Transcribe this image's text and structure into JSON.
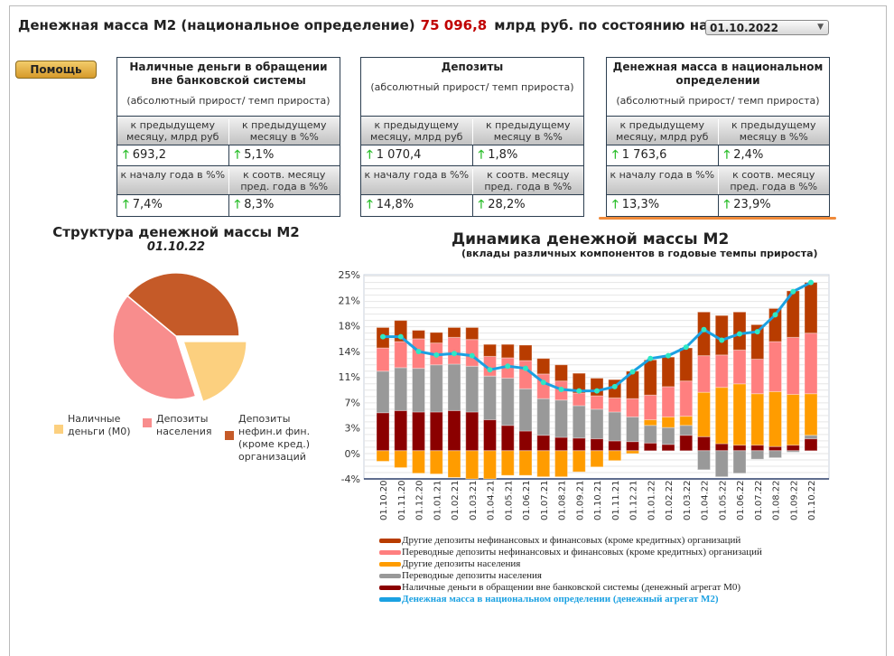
{
  "header": {
    "title": "Денежная масса М2 (национальное определение)",
    "value": "75 096,8",
    "unit": "млрд руб. по состоянию на",
    "date": "01.10.2022"
  },
  "help_label": "Помощь",
  "tables": [
    {
      "title": "Наличные деньги в обращении вне банковской системы",
      "subtitle": "(абсолютный прирост/ темп прироста)",
      "h1": "к предыдущему месяцу, млрд руб",
      "h2": "к предыдущему месяцу в %%",
      "v1": "693,2",
      "v2": "5,1%",
      "h3": "к началу года в %%",
      "h4": "к соотв. месяцу пред. года в %%",
      "v3": "7,4%",
      "v4": "8,3%"
    },
    {
      "title": "Депозиты",
      "subtitle": "(абсолютный прирост/ темп прироста)",
      "h1": "к предыдущему месяцу, млрд руб",
      "h2": "к предыдущему месяцу в %%",
      "v1": "1 070,4",
      "v2": "1,8%",
      "h3": "к началу года в %%",
      "h4": "к соотв. месяцу пред. года в %%",
      "v3": "14,8%",
      "v4": "28,2%"
    },
    {
      "title": "Денежная масса в национальном определении",
      "subtitle": "(абсолютный прирост/ темп прироста)",
      "h1": "к предыдущему месяцу, млрд руб",
      "h2": "к предыдущему месяцу в %%",
      "v1": "1 763,6",
      "v2": "2,4%",
      "h3": "к началу года в %%",
      "h4": "к соотв. месяцу пред. года в %%",
      "v3": "13,3%",
      "v4": "23,9%"
    }
  ],
  "chart_data": [
    {
      "type": "pie",
      "title": "Структура денежной массы М2",
      "subtitle": "01.10.22",
      "slices": [
        {
          "name": "Наличные деньги (М0)",
          "value": 20,
          "color": "#fcd07f"
        },
        {
          "name": "Депозиты населения",
          "value": 41,
          "color": "#f88d8d"
        },
        {
          "name": "Депозиты нефин.и фин. (кроме кред.) организаций",
          "value": 39,
          "color": "#c55a28"
        }
      ]
    },
    {
      "type": "bar",
      "stacked": true,
      "title": "Динамика денежной массы М2",
      "subtitle": "(вклады различных компонентов в годовые темпы прироста)",
      "ylim": [
        -4,
        25
      ],
      "yticks": [
        "25%",
        "21%",
        "18%",
        "14%",
        "11%",
        "7%",
        "3%",
        "0%",
        "-4%"
      ],
      "grid": true,
      "legend": "bottom",
      "categories": [
        "01.10.20",
        "01.11.20",
        "01.12.20",
        "01.01.21",
        "01.02.21",
        "01.03.21",
        "01.04.21",
        "01.05.21",
        "01.06.21",
        "01.07.21",
        "01.08.21",
        "01.09.21",
        "01.10.21",
        "01.11.21",
        "01.12.21",
        "01.01.22",
        "01.02.22",
        "01.03.22",
        "01.04.22",
        "01.05.22",
        "01.06.22",
        "01.07.22",
        "01.08.22",
        "01.09.22",
        "01.10.22"
      ],
      "series": [
        {
          "name": "Наличные деньги в обращении вне банковской системы (денежный агрегат М0)",
          "color": "#8b0000",
          "values": [
            5.4,
            5.7,
            5.5,
            5.5,
            5.7,
            5.5,
            4.4,
            3.6,
            2.8,
            2.2,
            1.9,
            1.8,
            1.7,
            1.4,
            1.3,
            1.1,
            0.9,
            2.2,
            2.0,
            1.0,
            0.8,
            0.8,
            0.6,
            0.8,
            1.7
          ]
        },
        {
          "name": "Переводные депозиты населения",
          "color": "#999999",
          "values": [
            5.9,
            6.1,
            6.2,
            6.7,
            6.6,
            6.5,
            6.2,
            6.7,
            6.0,
            5.2,
            5.3,
            4.6,
            4.2,
            4.1,
            3.5,
            2.5,
            2.4,
            1.4,
            -2.7,
            -3.7,
            -3.2,
            -1.2,
            -1.0,
            -0.2,
            0.5
          ]
        },
        {
          "name": "Другие депозиты населения",
          "color": "#ff9c00",
          "values": [
            -1.5,
            -2.4,
            -3.2,
            -3.3,
            -3.8,
            -4.0,
            -4.0,
            -3.5,
            -3.5,
            -3.7,
            -3.7,
            -3.0,
            -2.3,
            -1.4,
            -0.4,
            0.8,
            1.5,
            1.3,
            6.3,
            8.0,
            8.7,
            7.3,
            7.8,
            7.2,
            5.9
          ]
        },
        {
          "name": "Переводные депозиты нефинансовых и финансовых (кроме кредитных)  организаций",
          "color": "#ff7f7f",
          "values": [
            3.3,
            3.7,
            4.2,
            3.1,
            3.8,
            3.8,
            2.8,
            2.9,
            4.0,
            3.5,
            2.7,
            1.8,
            1.9,
            2.0,
            2.6,
            3.5,
            4.3,
            5.0,
            5.2,
            4.6,
            4.8,
            4.9,
            7.1,
            8.1,
            8.6
          ]
        },
        {
          "name": "Другие депозиты нефинансовых и финансовых (кроме кредитных)  организаций",
          "color": "#b83c00",
          "values": [
            2.9,
            3.0,
            1.2,
            1.5,
            1.4,
            1.7,
            1.7,
            1.9,
            2.2,
            2.2,
            2.3,
            2.8,
            2.5,
            2.6,
            3.9,
            5.0,
            4.2,
            4.7,
            6.2,
            5.6,
            5.4,
            4.9,
            4.7,
            6.6,
            7.2
          ]
        }
      ],
      "line": {
        "name": "Денежная масса в национальном  определении  (денежный агрегат  М2)",
        "color": "#1ba1e2",
        "values": [
          16.2,
          16.2,
          14.1,
          13.6,
          13.8,
          13.5,
          11.5,
          12.0,
          11.7,
          9.7,
          8.7,
          8.5,
          8.5,
          9.1,
          11.2,
          13.1,
          13.5,
          14.7,
          17.2,
          15.7,
          16.6,
          16.9,
          19.3,
          22.6,
          23.9
        ]
      }
    }
  ]
}
